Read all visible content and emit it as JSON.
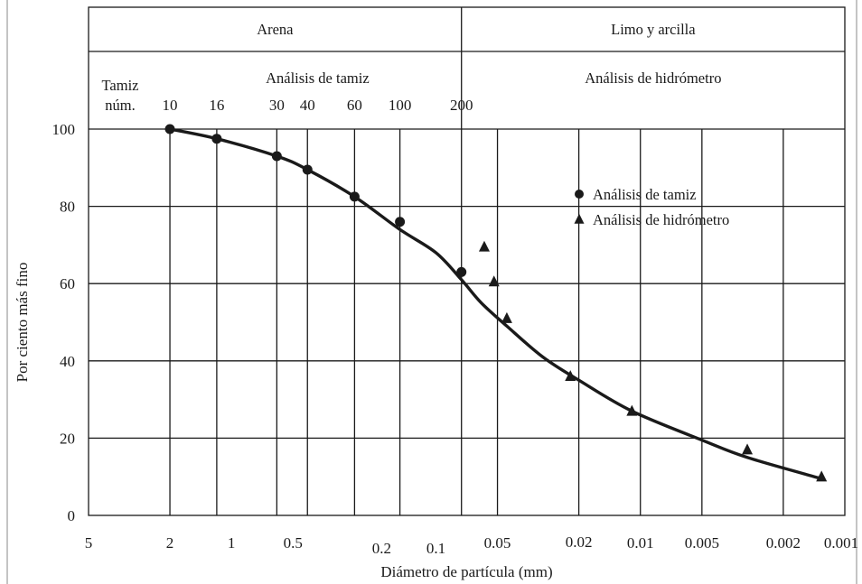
{
  "chart_data": {
    "type": "scatter",
    "xlabel": "Diámetro de partícula (mm)",
    "ylabel": "Por ciento más fino",
    "x_scale": "log",
    "x_reversed": true,
    "xlim": [
      5,
      0.001
    ],
    "ylim": [
      0,
      100
    ],
    "grid": true,
    "y_ticks": [
      0,
      20,
      40,
      60,
      80,
      100
    ],
    "x_tick_labels": [
      "5",
      "2",
      "1",
      "0.5",
      "0.2",
      "0.1",
      "0.05",
      "0.02",
      "0.01",
      "0.005",
      "0.002",
      "0.001"
    ],
    "x_tick_values": [
      5,
      2,
      1,
      0.5,
      0.2,
      0.1,
      0.05,
      0.02,
      0.01,
      0.005,
      0.002,
      0.001
    ],
    "bands": [
      {
        "label": "Arena",
        "x_from": 5,
        "x_to": 0.075
      },
      {
        "label": "Limo y arcilla",
        "x_from": 0.075,
        "x_to": 0.001
      }
    ],
    "sieve_header": {
      "row_label_1": "Tamiz",
      "row_label_2": "núm.",
      "sieve_title": "Análisis de tamiz",
      "hydrometer_title": "Análisis de hidrómetro",
      "sieves": [
        {
          "label": "10",
          "x": 2.0
        },
        {
          "label": "16",
          "x": 1.18
        },
        {
          "label": "30",
          "x": 0.6
        },
        {
          "label": "40",
          "x": 0.425
        },
        {
          "label": "60",
          "x": 0.25
        },
        {
          "label": "100",
          "x": 0.15
        },
        {
          "label": "200",
          "x": 0.075
        }
      ]
    },
    "series": [
      {
        "name": "Análisis de tamiz",
        "marker": "circle",
        "x": [
          2.0,
          1.18,
          0.6,
          0.425,
          0.25,
          0.15,
          0.075
        ],
        "y": [
          100,
          97.5,
          93,
          89.5,
          82.5,
          76,
          63
        ]
      },
      {
        "name": "Análisis de hidrómetro",
        "marker": "triangle",
        "x": [
          0.058,
          0.052,
          0.045,
          0.022,
          0.011,
          0.003,
          0.0013
        ],
        "y": [
          69.5,
          60.5,
          51,
          36,
          27,
          17,
          10
        ]
      }
    ],
    "curve": {
      "x": [
        2.0,
        1.18,
        0.6,
        0.425,
        0.25,
        0.15,
        0.1,
        0.075,
        0.06,
        0.045,
        0.03,
        0.02,
        0.011,
        0.005,
        0.003,
        0.0013
      ],
      "y": [
        100,
        97.5,
        93,
        89.5,
        82.5,
        74,
        68,
        61,
        55,
        49,
        41,
        35,
        27,
        19.5,
        15,
        9.5
      ]
    },
    "legend_position": "upper-right"
  },
  "colors": {
    "ink": "#1a1a1a",
    "background": "#ffffff"
  }
}
